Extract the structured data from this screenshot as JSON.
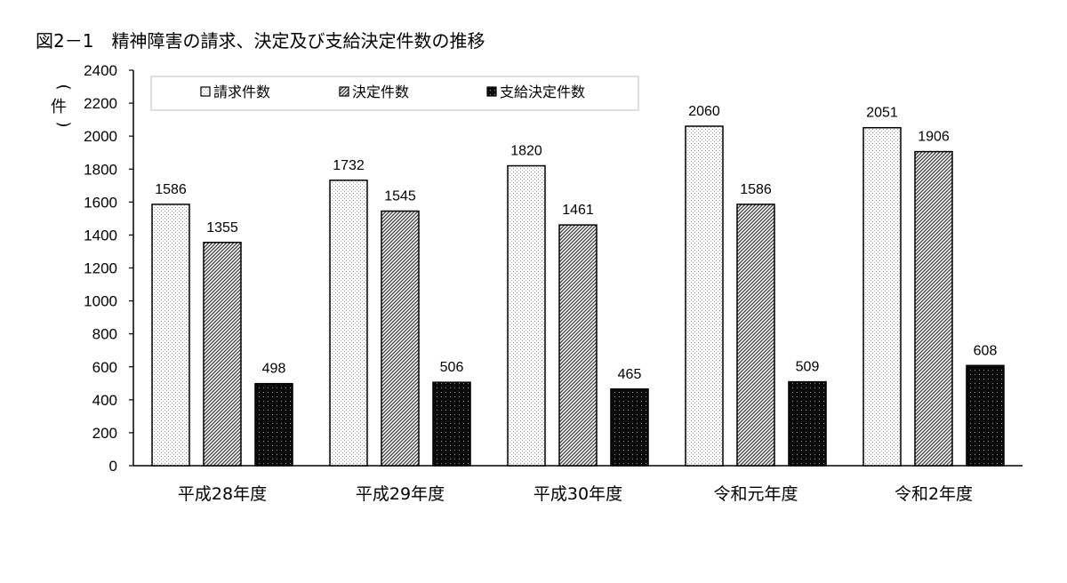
{
  "title": "図2－1　精神障害の請求、決定及び支給決定件数の推移",
  "chart_data": {
    "type": "bar",
    "title": "図2－1　精神障害の請求、決定及び支給決定件数の推移",
    "ylabel": "件",
    "xlabel": "",
    "ylim": [
      0,
      2400
    ],
    "yticks": [
      0,
      200,
      400,
      600,
      800,
      1000,
      1200,
      1400,
      1600,
      1800,
      2000,
      2200,
      2400
    ],
    "categories": [
      "平成28年度",
      "平成29年度",
      "平成30年度",
      "令和元年度",
      "令和2年度"
    ],
    "series": [
      {
        "name": "請求件数",
        "values": [
          1586,
          1732,
          1820,
          2060,
          2051
        ],
        "pattern": "dots"
      },
      {
        "name": "決定件数",
        "values": [
          1355,
          1545,
          1461,
          1586,
          1906
        ],
        "pattern": "diagonal"
      },
      {
        "name": "支給決定件数",
        "values": [
          498,
          506,
          465,
          509,
          608
        ],
        "pattern": "dark-dots"
      }
    ],
    "grid": false,
    "legend_position": "top-left",
    "data_labels": true
  }
}
